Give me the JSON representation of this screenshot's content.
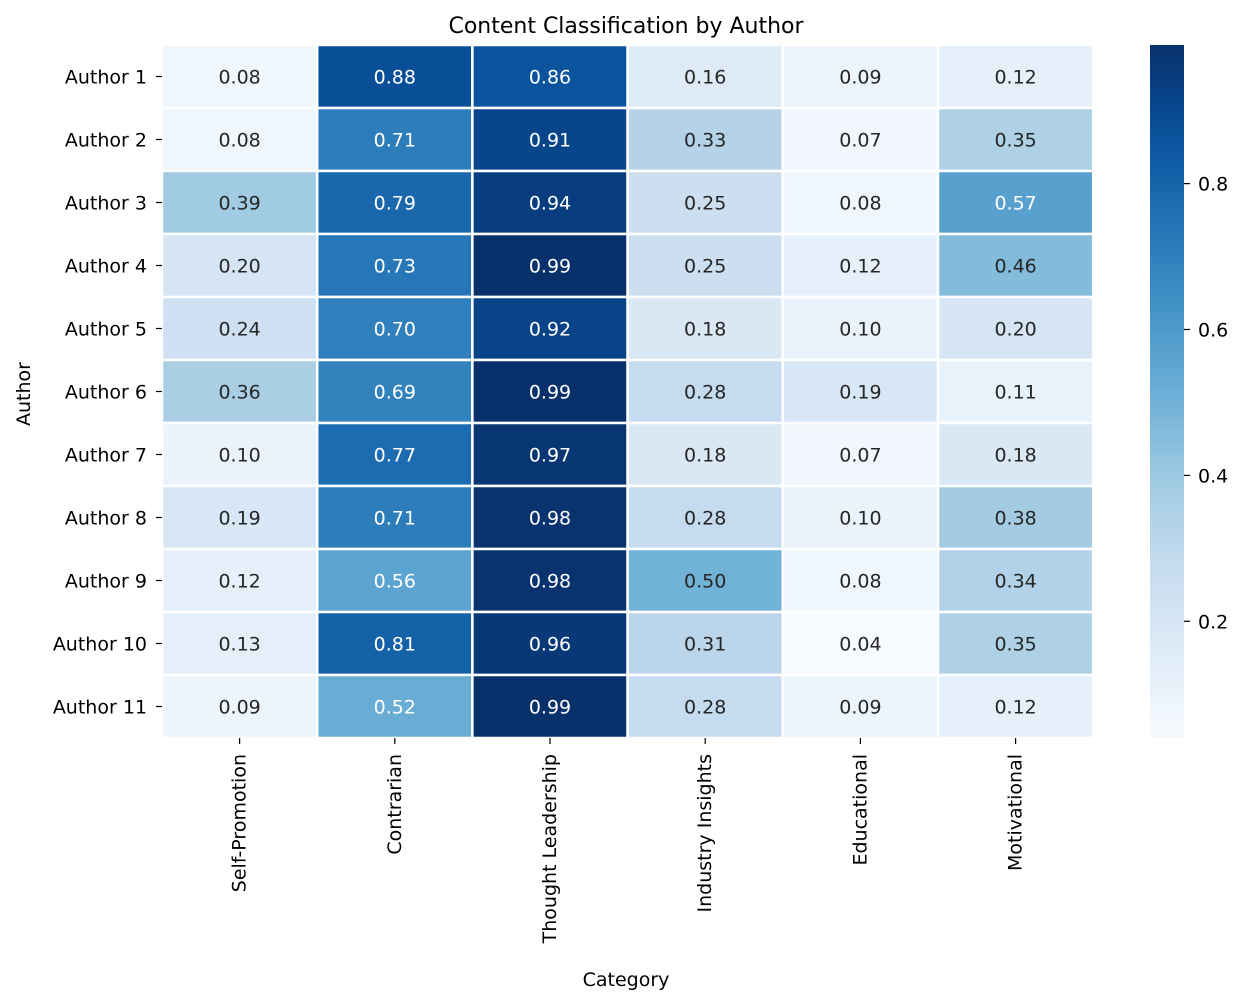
{
  "chart_data": {
    "type": "heatmap",
    "title": "Content Classification by Author",
    "xlabel": "Category",
    "ylabel": "Author",
    "categories": [
      "Self-Promotion",
      "Contrarian",
      "Thought Leadership",
      "Industry Insights",
      "Educational",
      "Motivational"
    ],
    "rows": [
      "Author 1",
      "Author 2",
      "Author 3",
      "Author 4",
      "Author 5",
      "Author 6",
      "Author 7",
      "Author 8",
      "Author 9",
      "Author 10",
      "Author 11"
    ],
    "values": [
      [
        0.08,
        0.88,
        0.86,
        0.16,
        0.09,
        0.12
      ],
      [
        0.08,
        0.71,
        0.91,
        0.33,
        0.07,
        0.35
      ],
      [
        0.39,
        0.79,
        0.94,
        0.25,
        0.08,
        0.57
      ],
      [
        0.2,
        0.73,
        0.99,
        0.25,
        0.12,
        0.46
      ],
      [
        0.24,
        0.7,
        0.92,
        0.18,
        0.1,
        0.2
      ],
      [
        0.36,
        0.69,
        0.99,
        0.28,
        0.19,
        0.11
      ],
      [
        0.1,
        0.77,
        0.97,
        0.18,
        0.07,
        0.18
      ],
      [
        0.19,
        0.71,
        0.98,
        0.28,
        0.1,
        0.38
      ],
      [
        0.12,
        0.56,
        0.98,
        0.5,
        0.08,
        0.34
      ],
      [
        0.13,
        0.81,
        0.96,
        0.31,
        0.04,
        0.35
      ],
      [
        0.09,
        0.52,
        0.99,
        0.28,
        0.09,
        0.12
      ]
    ],
    "colormap": "Blues",
    "colorbar": {
      "range": [
        0.04,
        0.99
      ],
      "ticks": [
        0.2,
        0.4,
        0.6,
        0.8
      ],
      "tick_labels": [
        "0.2",
        "0.4",
        "0.6",
        "0.8"
      ]
    },
    "value_format": "0.00",
    "grid": false,
    "legend": "colorbar-right"
  },
  "colors": {
    "cell_border": "#ffffff",
    "text_dark": "#262626",
    "text_light": "#ffffff",
    "axis": "#000000"
  }
}
